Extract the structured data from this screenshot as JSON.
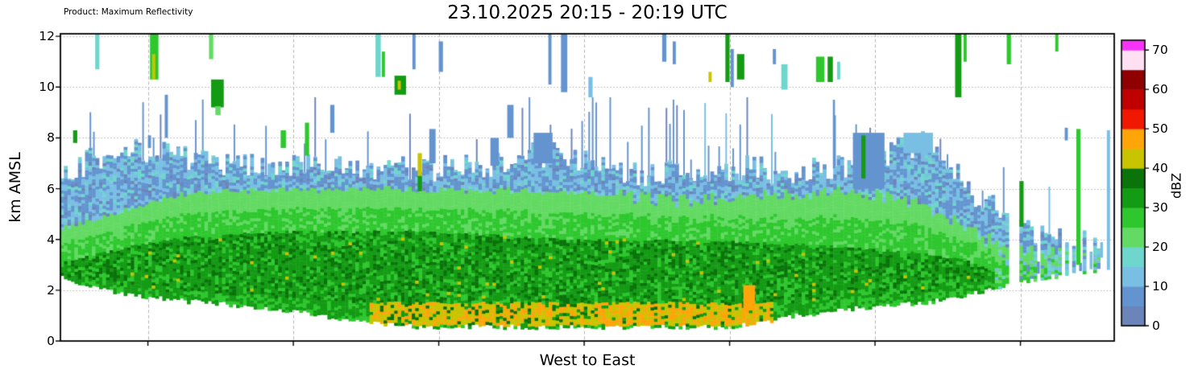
{
  "chart_data": {
    "type": "heatmap",
    "product_label": "Product: Maximum Reflectivity",
    "title": "23.10.2025 20:15 - 20:19 UTC",
    "xlabel": "West to East",
    "ylabel": "km AMSL",
    "ylim": [
      0,
      12.1
    ],
    "yticks": [
      0,
      2,
      4,
      6,
      8,
      10,
      12
    ],
    "x_gridlines": [
      0.083,
      0.221,
      0.359,
      0.497,
      0.635,
      0.773,
      0.911
    ],
    "grid": true,
    "noise_seed": 20251023,
    "colorbar": {
      "label": "dBZ",
      "ticks": [
        0,
        10,
        20,
        30,
        40,
        50,
        60,
        70
      ],
      "max": 72.5,
      "segments": [
        {
          "from": 0,
          "to": 5,
          "color": "#6b85bb"
        },
        {
          "from": 5,
          "to": 10,
          "color": "#6494cf"
        },
        {
          "from": 10,
          "to": 15,
          "color": "#79bfe4"
        },
        {
          "from": 15,
          "to": 20,
          "color": "#6fd6cd"
        },
        {
          "from": 20,
          "to": 25,
          "color": "#63da63"
        },
        {
          "from": 25,
          "to": 30,
          "color": "#2ec82e"
        },
        {
          "from": 30,
          "to": 35,
          "color": "#149b14"
        },
        {
          "from": 35,
          "to": 40,
          "color": "#0a730a"
        },
        {
          "from": 40,
          "to": 45,
          "color": "#c9c400"
        },
        {
          "from": 45,
          "to": 50,
          "color": "#ffa50a"
        },
        {
          "from": 50,
          "to": 55,
          "color": "#f01800"
        },
        {
          "from": 55,
          "to": 60,
          "color": "#c00000"
        },
        {
          "from": 60,
          "to": 65,
          "color": "#900000"
        },
        {
          "from": 65,
          "to": 70,
          "color": "#ffdff2"
        },
        {
          "from": 70,
          "to": 72.5,
          "color": "#f733f7"
        }
      ]
    },
    "bright_band": {
      "x0": 0.295,
      "x1": 0.675,
      "z0": 0.55,
      "z1": 1.45
    },
    "envelope": [
      {
        "x": 0.0,
        "base": 2.5,
        "core_base": 2.5,
        "core_top": 3.0,
        "green_top": 4.4,
        "echo_top": 6.3,
        "p": 1.0
      },
      {
        "x": 0.03,
        "base": 2.1,
        "core_base": 2.4,
        "core_top": 3.3,
        "green_top": 4.7,
        "echo_top": 7.2,
        "p": 1.0
      },
      {
        "x": 0.07,
        "base": 1.8,
        "core_base": 2.0,
        "core_top": 3.7,
        "green_top": 5.2,
        "echo_top": 7.7,
        "p": 1.0
      },
      {
        "x": 0.11,
        "base": 1.6,
        "core_base": 1.9,
        "core_top": 4.0,
        "green_top": 5.7,
        "echo_top": 7.3,
        "p": 1.0
      },
      {
        "x": 0.16,
        "base": 1.45,
        "core_base": 1.8,
        "core_top": 4.15,
        "green_top": 5.85,
        "echo_top": 7.0,
        "p": 1.0
      },
      {
        "x": 0.22,
        "base": 1.2,
        "core_base": 1.6,
        "core_top": 4.25,
        "green_top": 5.9,
        "echo_top": 6.8,
        "p": 1.0
      },
      {
        "x": 0.28,
        "base": 0.8,
        "core_base": 1.45,
        "core_top": 4.25,
        "green_top": 5.9,
        "echo_top": 6.9,
        "p": 1.0
      },
      {
        "x": 0.34,
        "base": 0.55,
        "core_base": 1.45,
        "core_top": 4.3,
        "green_top": 5.9,
        "echo_top": 6.7,
        "p": 1.0
      },
      {
        "x": 0.4,
        "base": 0.55,
        "core_base": 1.45,
        "core_top": 4.15,
        "green_top": 5.9,
        "echo_top": 6.9,
        "p": 1.0
      },
      {
        "x": 0.46,
        "base": 0.55,
        "core_base": 1.45,
        "core_top": 4.0,
        "green_top": 5.85,
        "echo_top": 7.4,
        "p": 1.0
      },
      {
        "x": 0.52,
        "base": 0.55,
        "core_base": 1.45,
        "core_top": 3.95,
        "green_top": 5.75,
        "echo_top": 6.7,
        "p": 1.0
      },
      {
        "x": 0.58,
        "base": 0.55,
        "core_base": 1.45,
        "core_top": 3.9,
        "green_top": 5.45,
        "echo_top": 6.6,
        "p": 1.0
      },
      {
        "x": 0.64,
        "base": 0.55,
        "core_base": 1.4,
        "core_top": 3.85,
        "green_top": 5.55,
        "echo_top": 6.8,
        "p": 1.0
      },
      {
        "x": 0.7,
        "base": 1.0,
        "core_base": 1.5,
        "core_top": 3.75,
        "green_top": 5.7,
        "echo_top": 6.7,
        "p": 1.0
      },
      {
        "x": 0.76,
        "base": 1.3,
        "core_base": 1.7,
        "core_top": 3.6,
        "green_top": 5.8,
        "echo_top": 6.9,
        "p": 1.0
      },
      {
        "x": 0.82,
        "base": 1.5,
        "core_base": 1.9,
        "core_top": 3.4,
        "green_top": 5.3,
        "echo_top": 7.9,
        "p": 1.0
      },
      {
        "x": 0.86,
        "base": 1.8,
        "core_base": 2.1,
        "core_top": 3.1,
        "green_top": 4.4,
        "echo_top": 6.1,
        "p": 1.0
      },
      {
        "x": 0.9,
        "base": 2.2,
        "core_base": 2.5,
        "core_top": 2.5,
        "green_top": 3.7,
        "echo_top": 4.7,
        "p": 0.85
      },
      {
        "x": 0.95,
        "base": 2.6,
        "core_base": 2.8,
        "core_top": 2.8,
        "green_top": 3.4,
        "echo_top": 4.1,
        "p": 0.6
      },
      {
        "x": 1.0,
        "base": 2.9,
        "core_base": 3.0,
        "core_top": 3.0,
        "green_top": 3.2,
        "echo_top": 3.7,
        "p": 0.5
      }
    ],
    "cells": [
      {
        "x": 0.012,
        "w": 0.004,
        "z0": 7.8,
        "z1": 8.3,
        "dbz": 33
      },
      {
        "x": 0.033,
        "w": 0.004,
        "z0": 10.7,
        "z1": 12.1,
        "dbz": 16
      },
      {
        "x": 0.083,
        "w": 0.003,
        "z0": 7.6,
        "z1": 8.1,
        "dbz": 9
      },
      {
        "x": 0.085,
        "w": 0.008,
        "z0": 10.3,
        "z1": 12.1,
        "dbz": 27
      },
      {
        "x": 0.087,
        "w": 0.003,
        "z0": 10.3,
        "z1": 11.3,
        "dbz": 42
      },
      {
        "x": 0.099,
        "w": 0.003,
        "z0": 8.0,
        "z1": 9.7,
        "dbz": 7
      },
      {
        "x": 0.141,
        "w": 0.004,
        "z0": 11.1,
        "z1": 12.1,
        "dbz": 24
      },
      {
        "x": 0.143,
        "w": 0.012,
        "z0": 9.2,
        "z1": 10.3,
        "dbz": 33
      },
      {
        "x": 0.147,
        "w": 0.005,
        "z0": 8.9,
        "z1": 9.25,
        "dbz": 24
      },
      {
        "x": 0.209,
        "w": 0.005,
        "z0": 7.6,
        "z1": 8.3,
        "dbz": 28
      },
      {
        "x": 0.232,
        "w": 0.004,
        "z0": 7.3,
        "z1": 8.6,
        "dbz": 25
      },
      {
        "x": 0.256,
        "w": 0.004,
        "z0": 8.2,
        "z1": 9.3,
        "dbz": 8
      },
      {
        "x": 0.299,
        "w": 0.005,
        "z0": 10.4,
        "z1": 12.1,
        "dbz": 16
      },
      {
        "x": 0.305,
        "w": 0.003,
        "z0": 10.4,
        "z1": 11.4,
        "dbz": 26
      },
      {
        "x": 0.317,
        "w": 0.011,
        "z0": 9.7,
        "z1": 10.45,
        "dbz": 33
      },
      {
        "x": 0.32,
        "w": 0.003,
        "z0": 9.9,
        "z1": 10.25,
        "dbz": 41
      },
      {
        "x": 0.334,
        "w": 0.003,
        "z0": 10.7,
        "z1": 12.1,
        "dbz": 6
      },
      {
        "x": 0.339,
        "w": 0.004,
        "z0": 6.5,
        "z1": 7.4,
        "dbz": 41
      },
      {
        "x": 0.339,
        "w": 0.004,
        "z0": 5.9,
        "z1": 6.5,
        "dbz": 33
      },
      {
        "x": 0.35,
        "w": 0.006,
        "z0": 7.0,
        "z1": 8.35,
        "dbz": 8
      },
      {
        "x": 0.359,
        "w": 0.004,
        "z0": 10.6,
        "z1": 11.8,
        "dbz": 6
      },
      {
        "x": 0.408,
        "w": 0.008,
        "z0": 6.9,
        "z1": 8.0,
        "dbz": 7
      },
      {
        "x": 0.424,
        "w": 0.006,
        "z0": 8.0,
        "z1": 9.3,
        "dbz": 9
      },
      {
        "x": 0.449,
        "w": 0.018,
        "z0": 7.0,
        "z1": 8.2,
        "dbz": 8
      },
      {
        "x": 0.463,
        "w": 0.003,
        "z0": 10.1,
        "z1": 12.1,
        "dbz": 7
      },
      {
        "x": 0.475,
        "w": 0.006,
        "z0": 9.8,
        "z1": 12.1,
        "dbz": 9
      },
      {
        "x": 0.501,
        "w": 0.004,
        "z0": 9.6,
        "z1": 10.4,
        "dbz": 11
      },
      {
        "x": 0.571,
        "w": 0.004,
        "z0": 11.0,
        "z1": 12.1,
        "dbz": 7
      },
      {
        "x": 0.581,
        "w": 0.003,
        "z0": 10.9,
        "z1": 11.8,
        "dbz": 7
      },
      {
        "x": 0.615,
        "w": 0.003,
        "z0": 10.2,
        "z1": 10.6,
        "dbz": 40
      },
      {
        "x": 0.631,
        "w": 0.004,
        "z0": 10.2,
        "z1": 12.1,
        "dbz": 32
      },
      {
        "x": 0.636,
        "w": 0.003,
        "z0": 10.0,
        "z1": 11.5,
        "dbz": 9
      },
      {
        "x": 0.642,
        "w": 0.007,
        "z0": 10.3,
        "z1": 11.3,
        "dbz": 33
      },
      {
        "x": 0.648,
        "w": 0.011,
        "z0": 1.2,
        "z1": 2.2,
        "dbz": 47
      },
      {
        "x": 0.676,
        "w": 0.003,
        "z0": 10.9,
        "z1": 11.5,
        "dbz": 7
      },
      {
        "x": 0.684,
        "w": 0.006,
        "z0": 9.9,
        "z1": 10.9,
        "dbz": 16
      },
      {
        "x": 0.717,
        "w": 0.008,
        "z0": 10.2,
        "z1": 11.2,
        "dbz": 27
      },
      {
        "x": 0.728,
        "w": 0.005,
        "z0": 10.2,
        "z1": 11.2,
        "dbz": 33
      },
      {
        "x": 0.733,
        "w": 0.002,
        "z0": 6.8,
        "z1": 9.5,
        "dbz": 8
      },
      {
        "x": 0.737,
        "w": 0.003,
        "z0": 10.3,
        "z1": 11.0,
        "dbz": 16
      },
      {
        "x": 0.752,
        "w": 0.03,
        "z0": 6.0,
        "z1": 8.2,
        "dbz": 7
      },
      {
        "x": 0.76,
        "w": 0.004,
        "z0": 6.4,
        "z1": 8.1,
        "dbz": 33
      },
      {
        "x": 0.8,
        "w": 0.028,
        "z0": 7.4,
        "z1": 8.2,
        "dbz": 11
      },
      {
        "x": 0.849,
        "w": 0.006,
        "z0": 9.6,
        "z1": 12.1,
        "dbz": 33
      },
      {
        "x": 0.857,
        "w": 0.003,
        "z0": 11.0,
        "z1": 12.1,
        "dbz": 25
      },
      {
        "x": 0.898,
        "w": 0.004,
        "z0": 10.9,
        "z1": 12.1,
        "dbz": 26
      },
      {
        "x": 0.91,
        "w": 0.004,
        "z0": 4.5,
        "z1": 6.3,
        "dbz": 32
      },
      {
        "x": 0.944,
        "w": 0.003,
        "z0": 11.4,
        "z1": 12.1,
        "dbz": 25
      },
      {
        "x": 0.953,
        "w": 0.003,
        "z0": 7.9,
        "z1": 8.4,
        "dbz": 7
      },
      {
        "x": 0.964,
        "w": 0.004,
        "z0": 3.0,
        "z1": 8.35,
        "dbz": 26
      },
      {
        "x": 0.993,
        "w": 0.003,
        "z0": 2.8,
        "z1": 8.3,
        "dbz": 14
      }
    ]
  }
}
